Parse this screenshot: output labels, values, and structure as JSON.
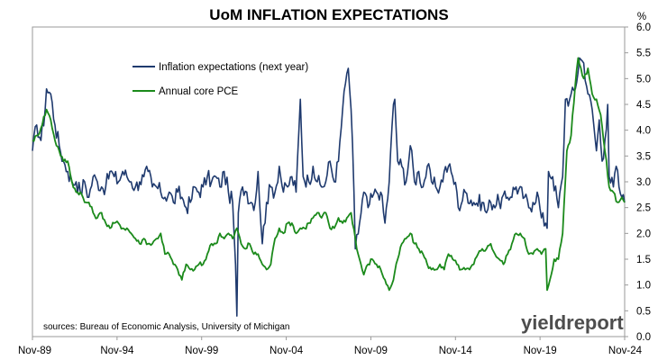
{
  "chart_data": {
    "type": "line",
    "title": "UoM INFLATION EXPECTATIONS",
    "ylabel": "%",
    "ylim": [
      0,
      6
    ],
    "yticks": [
      "0.0",
      "0.5",
      "1.0",
      "1.5",
      "2.0",
      "2.5",
      "3.0",
      "3.5",
      "4.0",
      "4.5",
      "5.0",
      "5.5",
      "6.0"
    ],
    "xlim": [
      "1989-11",
      "2024-11"
    ],
    "xticks": [
      "Nov-89",
      "Nov-94",
      "Nov-99",
      "Nov-04",
      "Nov-09",
      "Nov-14",
      "Nov-19",
      "Nov-24"
    ],
    "grid": false,
    "legend_position": "top-left",
    "series": [
      {
        "name": "Inflation expectations (next year)",
        "color": "#1f3a6e",
        "points": [
          [
            "1989-11",
            3.6
          ],
          [
            "1990-02",
            4.1
          ],
          [
            "1990-05",
            3.8
          ],
          [
            "1990-08",
            4.4
          ],
          [
            "1990-09",
            4.8
          ],
          [
            "1990-12",
            4.7
          ],
          [
            "1991-03",
            4.1
          ],
          [
            "1991-06",
            3.7
          ],
          [
            "1991-09",
            3.4
          ],
          [
            "1991-12",
            3.2
          ],
          [
            "1992-03",
            3.0
          ],
          [
            "1992-06",
            3.0
          ],
          [
            "1992-09",
            2.8
          ],
          [
            "1992-12",
            3.0
          ],
          [
            "1993-03",
            2.7
          ],
          [
            "1993-06",
            3.1
          ],
          [
            "1993-09",
            3.0
          ],
          [
            "1993-12",
            2.9
          ],
          [
            "1994-03",
            2.9
          ],
          [
            "1994-06",
            3.2
          ],
          [
            "1994-09",
            3.1
          ],
          [
            "1994-12",
            3.0
          ],
          [
            "1995-03",
            3.2
          ],
          [
            "1995-06",
            3.1
          ],
          [
            "1995-09",
            3.0
          ],
          [
            "1995-12",
            2.9
          ],
          [
            "1996-03",
            3.0
          ],
          [
            "1996-06",
            3.1
          ],
          [
            "1996-09",
            3.2
          ],
          [
            "1996-12",
            2.9
          ],
          [
            "1997-03",
            2.9
          ],
          [
            "1997-06",
            2.8
          ],
          [
            "1997-09",
            2.7
          ],
          [
            "1997-12",
            2.8
          ],
          [
            "1998-03",
            2.6
          ],
          [
            "1998-06",
            2.8
          ],
          [
            "1998-09",
            2.7
          ],
          [
            "1998-12",
            2.5
          ],
          [
            "1999-03",
            2.6
          ],
          [
            "1999-06",
            2.9
          ],
          [
            "1999-09",
            2.8
          ],
          [
            "1999-12",
            2.9
          ],
          [
            "2000-03",
            3.1
          ],
          [
            "2000-06",
            3.0
          ],
          [
            "2000-09",
            3.1
          ],
          [
            "2000-12",
            2.9
          ],
          [
            "2001-03",
            3.2
          ],
          [
            "2001-06",
            2.8
          ],
          [
            "2001-09",
            2.6
          ],
          [
            "2001-11",
            1.4
          ],
          [
            "2001-12",
            0.4
          ],
          [
            "2002-01",
            2.4
          ],
          [
            "2002-04",
            2.9
          ],
          [
            "2002-07",
            2.8
          ],
          [
            "2002-10",
            2.6
          ],
          [
            "2003-01",
            2.6
          ],
          [
            "2003-03",
            3.2
          ],
          [
            "2003-06",
            1.8
          ],
          [
            "2003-09",
            2.6
          ],
          [
            "2003-12",
            2.9
          ],
          [
            "2004-03",
            2.8
          ],
          [
            "2004-06",
            3.3
          ],
          [
            "2004-09",
            2.8
          ],
          [
            "2004-12",
            2.9
          ],
          [
            "2005-03",
            3.1
          ],
          [
            "2005-06",
            2.8
          ],
          [
            "2005-09",
            4.6
          ],
          [
            "2005-11",
            3.1
          ],
          [
            "2006-03",
            3.0
          ],
          [
            "2006-06",
            3.3
          ],
          [
            "2006-09",
            3.0
          ],
          [
            "2006-12",
            2.9
          ],
          [
            "2007-03",
            3.0
          ],
          [
            "2007-06",
            3.4
          ],
          [
            "2007-09",
            3.0
          ],
          [
            "2007-12",
            3.4
          ],
          [
            "2008-03",
            4.4
          ],
          [
            "2008-06",
            5.1
          ],
          [
            "2008-07",
            5.2
          ],
          [
            "2008-09",
            4.4
          ],
          [
            "2008-11",
            2.8
          ],
          [
            "2008-12",
            1.7
          ],
          [
            "2009-03",
            2.2
          ],
          [
            "2009-06",
            2.8
          ],
          [
            "2009-09",
            2.5
          ],
          [
            "2009-12",
            2.7
          ],
          [
            "2010-03",
            2.8
          ],
          [
            "2010-06",
            2.8
          ],
          [
            "2010-09",
            2.2
          ],
          [
            "2010-12",
            3.0
          ],
          [
            "2011-03",
            4.5
          ],
          [
            "2011-04",
            4.6
          ],
          [
            "2011-06",
            3.4
          ],
          [
            "2011-09",
            3.3
          ],
          [
            "2011-12",
            3.0
          ],
          [
            "2012-03",
            3.7
          ],
          [
            "2012-06",
            3.0
          ],
          [
            "2012-09",
            3.2
          ],
          [
            "2012-12",
            2.9
          ],
          [
            "2013-03",
            3.3
          ],
          [
            "2013-06",
            3.0
          ],
          [
            "2013-09",
            2.9
          ],
          [
            "2013-12",
            2.9
          ],
          [
            "2014-03",
            3.2
          ],
          [
            "2014-06",
            3.3
          ],
          [
            "2014-09",
            3.1
          ],
          [
            "2014-12",
            2.8
          ],
          [
            "2015-01",
            2.5
          ],
          [
            "2015-06",
            2.8
          ],
          [
            "2015-12",
            2.6
          ],
          [
            "2016-06",
            2.6
          ],
          [
            "2016-09",
            2.4
          ],
          [
            "2016-12",
            2.6
          ],
          [
            "2017-06",
            2.6
          ],
          [
            "2017-12",
            2.7
          ],
          [
            "2018-06",
            2.9
          ],
          [
            "2018-12",
            2.7
          ],
          [
            "2019-03",
            2.5
          ],
          [
            "2019-06",
            2.6
          ],
          [
            "2019-09",
            2.8
          ],
          [
            "2019-12",
            2.3
          ],
          [
            "2020-03",
            2.2
          ],
          [
            "2020-04",
            2.1
          ],
          [
            "2020-05",
            3.2
          ],
          [
            "2020-08",
            3.1
          ],
          [
            "2020-12",
            2.5
          ],
          [
            "2021-03",
            3.1
          ],
          [
            "2021-05",
            4.6
          ],
          [
            "2021-08",
            4.6
          ],
          [
            "2021-12",
            4.8
          ],
          [
            "2022-03",
            5.4
          ],
          [
            "2022-06",
            5.3
          ],
          [
            "2022-09",
            4.7
          ],
          [
            "2022-12",
            4.4
          ],
          [
            "2023-03",
            3.6
          ],
          [
            "2023-05",
            4.2
          ],
          [
            "2023-07",
            3.4
          ],
          [
            "2023-09",
            3.8
          ],
          [
            "2023-11",
            4.5
          ],
          [
            "2023-12",
            3.1
          ],
          [
            "2024-03",
            2.9
          ],
          [
            "2024-05",
            3.3
          ],
          [
            "2024-07",
            2.9
          ],
          [
            "2024-09",
            2.7
          ],
          [
            "2024-11",
            2.6
          ]
        ]
      },
      {
        "name": "Annual core PCE",
        "color": "#1b8a1b",
        "points": [
          [
            "1989-11",
            3.8
          ],
          [
            "1990-03",
            3.9
          ],
          [
            "1990-09",
            4.4
          ],
          [
            "1990-12",
            4.2
          ],
          [
            "1991-03",
            3.8
          ],
          [
            "1991-06",
            3.6
          ],
          [
            "1991-09",
            3.4
          ],
          [
            "1991-12",
            3.4
          ],
          [
            "1992-03",
            3.0
          ],
          [
            "1992-06",
            2.8
          ],
          [
            "1992-09",
            2.8
          ],
          [
            "1992-12",
            2.6
          ],
          [
            "1993-03",
            2.6
          ],
          [
            "1993-06",
            2.4
          ],
          [
            "1993-09",
            2.3
          ],
          [
            "1993-12",
            2.4
          ],
          [
            "1994-03",
            2.2
          ],
          [
            "1994-06",
            2.1
          ],
          [
            "1994-09",
            2.2
          ],
          [
            "1994-12",
            2.2
          ],
          [
            "1995-03",
            2.1
          ],
          [
            "1995-06",
            2.1
          ],
          [
            "1995-09",
            2.0
          ],
          [
            "1995-12",
            1.9
          ],
          [
            "1996-03",
            1.8
          ],
          [
            "1996-06",
            1.9
          ],
          [
            "1996-09",
            1.8
          ],
          [
            "1996-12",
            1.8
          ],
          [
            "1997-03",
            1.9
          ],
          [
            "1997-06",
            2.0
          ],
          [
            "1997-09",
            1.6
          ],
          [
            "1997-12",
            1.6
          ],
          [
            "1998-03",
            1.4
          ],
          [
            "1998-06",
            1.3
          ],
          [
            "1998-09",
            1.1
          ],
          [
            "1998-12",
            1.4
          ],
          [
            "1999-03",
            1.3
          ],
          [
            "1999-06",
            1.3
          ],
          [
            "1999-09",
            1.4
          ],
          [
            "1999-12",
            1.4
          ],
          [
            "2000-03",
            1.6
          ],
          [
            "2000-06",
            1.8
          ],
          [
            "2000-09",
            1.8
          ],
          [
            "2000-12",
            2.0
          ],
          [
            "2001-03",
            1.9
          ],
          [
            "2001-06",
            2.0
          ],
          [
            "2001-09",
            1.9
          ],
          [
            "2001-12",
            2.1
          ],
          [
            "2002-03",
            1.8
          ],
          [
            "2002-06",
            1.7
          ],
          [
            "2002-09",
            1.8
          ],
          [
            "2002-12",
            1.6
          ],
          [
            "2003-03",
            1.6
          ],
          [
            "2003-06",
            1.4
          ],
          [
            "2003-09",
            1.3
          ],
          [
            "2003-12",
            1.4
          ],
          [
            "2004-03",
            1.9
          ],
          [
            "2004-06",
            2.1
          ],
          [
            "2004-09",
            2.0
          ],
          [
            "2004-12",
            2.2
          ],
          [
            "2005-03",
            2.2
          ],
          [
            "2005-06",
            2.0
          ],
          [
            "2005-09",
            2.1
          ],
          [
            "2005-12",
            2.1
          ],
          [
            "2006-03",
            2.2
          ],
          [
            "2006-06",
            2.3
          ],
          [
            "2006-09",
            2.4
          ],
          [
            "2006-12",
            2.3
          ],
          [
            "2007-03",
            2.4
          ],
          [
            "2007-06",
            2.1
          ],
          [
            "2007-09",
            2.1
          ],
          [
            "2007-12",
            2.3
          ],
          [
            "2008-03",
            2.2
          ],
          [
            "2008-06",
            2.3
          ],
          [
            "2008-09",
            2.4
          ],
          [
            "2008-12",
            1.9
          ],
          [
            "2009-01",
            1.7
          ],
          [
            "2009-03",
            1.5
          ],
          [
            "2009-06",
            1.2
          ],
          [
            "2009-09",
            1.4
          ],
          [
            "2009-12",
            1.5
          ],
          [
            "2010-03",
            1.4
          ],
          [
            "2010-06",
            1.3
          ],
          [
            "2010-09",
            1.1
          ],
          [
            "2010-12",
            0.9
          ],
          [
            "2011-03",
            1.1
          ],
          [
            "2011-06",
            1.5
          ],
          [
            "2011-09",
            1.8
          ],
          [
            "2011-12",
            1.9
          ],
          [
            "2012-03",
            2.0
          ],
          [
            "2012-06",
            1.8
          ],
          [
            "2012-09",
            1.7
          ],
          [
            "2012-12",
            1.6
          ],
          [
            "2013-03",
            1.4
          ],
          [
            "2013-06",
            1.3
          ],
          [
            "2013-09",
            1.3
          ],
          [
            "2013-12",
            1.4
          ],
          [
            "2014-03",
            1.3
          ],
          [
            "2014-06",
            1.6
          ],
          [
            "2014-09",
            1.5
          ],
          [
            "2014-12",
            1.4
          ],
          [
            "2015-03",
            1.3
          ],
          [
            "2015-06",
            1.3
          ],
          [
            "2015-09",
            1.3
          ],
          [
            "2015-12",
            1.4
          ],
          [
            "2016-03",
            1.6
          ],
          [
            "2016-06",
            1.7
          ],
          [
            "2016-09",
            1.7
          ],
          [
            "2016-12",
            1.8
          ],
          [
            "2017-03",
            1.6
          ],
          [
            "2017-06",
            1.5
          ],
          [
            "2017-09",
            1.4
          ],
          [
            "2017-12",
            1.6
          ],
          [
            "2018-03",
            1.8
          ],
          [
            "2018-06",
            2.0
          ],
          [
            "2018-09",
            2.0
          ],
          [
            "2018-12",
            1.9
          ],
          [
            "2019-03",
            1.6
          ],
          [
            "2019-06",
            1.6
          ],
          [
            "2019-09",
            1.7
          ],
          [
            "2019-12",
            1.6
          ],
          [
            "2020-03",
            1.7
          ],
          [
            "2020-04",
            0.9
          ],
          [
            "2020-06",
            1.1
          ],
          [
            "2020-09",
            1.5
          ],
          [
            "2020-12",
            1.5
          ],
          [
            "2021-03",
            2.0
          ],
          [
            "2021-06",
            3.6
          ],
          [
            "2021-09",
            3.9
          ],
          [
            "2021-12",
            4.9
          ],
          [
            "2022-02",
            5.4
          ],
          [
            "2022-06",
            5.0
          ],
          [
            "2022-09",
            5.2
          ],
          [
            "2022-12",
            4.7
          ],
          [
            "2023-03",
            4.6
          ],
          [
            "2023-06",
            4.3
          ],
          [
            "2023-09",
            3.6
          ],
          [
            "2023-12",
            2.9
          ],
          [
            "2024-03",
            2.8
          ],
          [
            "2024-06",
            2.6
          ],
          [
            "2024-09",
            2.7
          ],
          [
            "2024-11",
            2.6
          ]
        ]
      }
    ],
    "source_note": "sources: Bureau of Economic Analysis, University of Michigan",
    "watermark": "yieldreport"
  }
}
